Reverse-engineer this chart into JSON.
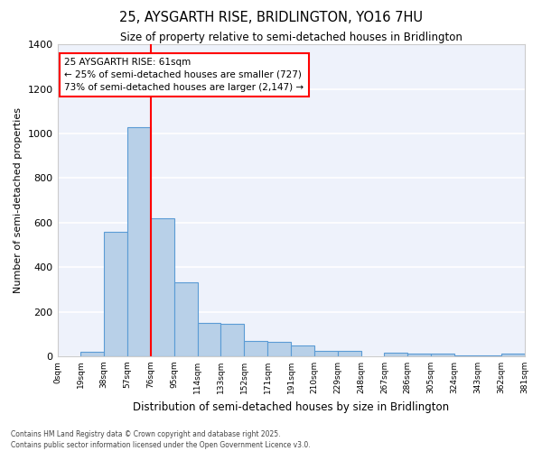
{
  "title": "25, AYSGARTH RISE, BRIDLINGTON, YO16 7HU",
  "subtitle": "Size of property relative to semi-detached houses in Bridlington",
  "xlabel": "Distribution of semi-detached houses by size in Bridlington",
  "ylabel": "Number of semi-detached properties",
  "bar_values": [
    0,
    20,
    560,
    1030,
    620,
    330,
    150,
    145,
    70,
    65,
    50,
    25,
    25,
    0,
    15,
    12,
    12,
    5,
    5,
    10
  ],
  "bin_labels": [
    "0sqm",
    "19sqm",
    "38sqm",
    "57sqm",
    "76sqm",
    "95sqm",
    "114sqm",
    "133sqm",
    "152sqm",
    "171sqm",
    "191sqm",
    "210sqm",
    "229sqm",
    "248sqm",
    "267sqm",
    "286sqm",
    "305sqm",
    "324sqm",
    "343sqm",
    "362sqm",
    "381sqm"
  ],
  "bar_color": "#b8d0e8",
  "bar_edge_color": "#5b9bd5",
  "red_line_bin": 3,
  "ylim": [
    0,
    1400
  ],
  "yticks": [
    0,
    200,
    400,
    600,
    800,
    1000,
    1200,
    1400
  ],
  "annotation_text": "25 AYSGARTH RISE: 61sqm\n← 25% of semi-detached houses are smaller (727)\n73% of semi-detached houses are larger (2,147) →",
  "footer_line1": "Contains HM Land Registry data © Crown copyright and database right 2025.",
  "footer_line2": "Contains public sector information licensed under the Open Government Licence v3.0.",
  "background_color": "#eef2fb",
  "grid_color": "#ffffff",
  "fig_bg": "#ffffff"
}
